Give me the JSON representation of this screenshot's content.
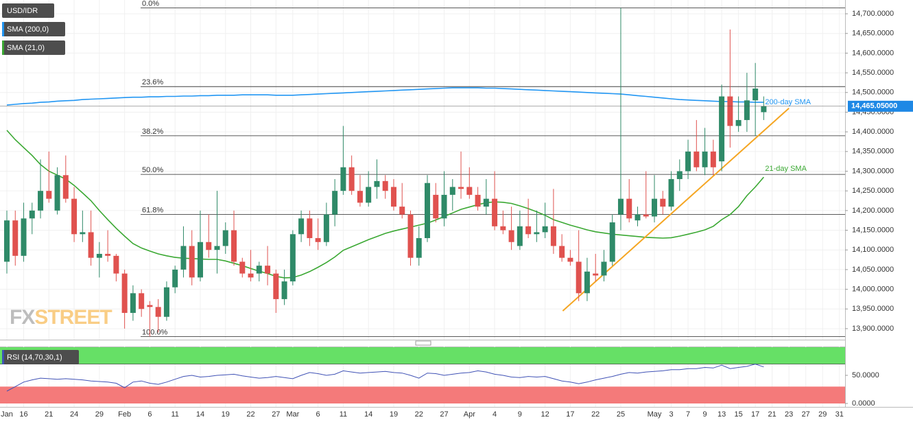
{
  "chart_data": {
    "type": "candlestick",
    "symbol": "USD/IDR",
    "categories": [
      "Jan",
      null,
      "16",
      null,
      null,
      "21",
      null,
      null,
      "24",
      null,
      null,
      "29",
      null,
      null,
      "Feb",
      null,
      null,
      "6",
      null,
      null,
      "11",
      null,
      null,
      "14",
      null,
      null,
      "19",
      null,
      null,
      "22",
      null,
      null,
      "27",
      null,
      "Mar",
      null,
      null,
      "6",
      null,
      null,
      "11",
      null,
      null,
      "14",
      null,
      null,
      "19",
      null,
      null,
      "22",
      null,
      null,
      "27",
      null,
      null,
      "Apr",
      null,
      null,
      "4",
      null,
      null,
      "9",
      null,
      null,
      "12",
      null,
      null,
      "17",
      null,
      null,
      "22",
      null,
      null,
      "25",
      null,
      null,
      null,
      "May",
      null,
      "3",
      null,
      "7",
      null,
      "9",
      null,
      "13",
      null,
      "15",
      null,
      "17",
      null,
      "21",
      null,
      "23",
      null,
      "27",
      null,
      "29",
      null,
      "31"
    ],
    "open": [
      14070,
      14175,
      14085,
      14180,
      14200,
      14250,
      14200,
      14290,
      14230,
      14140,
      14145,
      14080,
      14090,
      14085,
      14040,
      13940,
      13990,
      13960,
      13955,
      13930,
      14005,
      14050,
      14110,
      14030,
      14120,
      14100,
      14110,
      14150,
      14070,
      14040,
      14040,
      14060,
      14040,
      13975,
      14020,
      14140,
      14180,
      14130,
      14120,
      14190,
      14250,
      14310,
      14250,
      14220,
      14260,
      14275,
      14260,
      14210,
      14190,
      14080,
      14130,
      14240,
      14180,
      14240,
      14260,
      14260,
      14240,
      14210,
      14230,
      14160,
      14150,
      14110,
      14160,
      14140,
      14145,
      14160,
      14110,
      14080,
      14070,
      13990,
      14040,
      14035,
      14070,
      14190,
      14230,
      14175,
      14190,
      14185,
      14230,
      14210,
      14280,
      14300,
      14350,
      14310,
      14350,
      14325,
      14490,
      14415,
      14430,
      14480,
      14450,
      null,
      null,
      null,
      null,
      null,
      null,
      null,
      null,
      null
    ],
    "high": [
      14200,
      14200,
      14220,
      14220,
      14330,
      14350,
      14310,
      14340,
      14260,
      14200,
      14200,
      14120,
      14150,
      14090,
      14050,
      14010,
      14000,
      13970,
      13975,
      14020,
      14060,
      14160,
      14150,
      14200,
      14190,
      14250,
      14170,
      14200,
      14080,
      14100,
      14070,
      14110,
      14050,
      14050,
      14150,
      14200,
      14200,
      14180,
      14220,
      14280,
      14415,
      14340,
      14290,
      14300,
      14330,
      14290,
      14280,
      14270,
      14200,
      14160,
      14290,
      14270,
      14300,
      14280,
      14350,
      14310,
      14260,
      14280,
      14300,
      14200,
      14210,
      14200,
      14230,
      14200,
      14220,
      14255,
      14140,
      14100,
      14150,
      14080,
      14090,
      14100,
      14190,
      14715,
      14280,
      14210,
      14300,
      14290,
      14250,
      14300,
      14330,
      14380,
      14430,
      14410,
      14380,
      14520,
      14660,
      14490,
      14550,
      14575,
      14490,
      null,
      null,
      null,
      null,
      null,
      null,
      null,
      null,
      null
    ],
    "low": [
      14040,
      14060,
      14070,
      14140,
      14180,
      14220,
      14190,
      14220,
      14120,
      14120,
      14060,
      14030,
      14070,
      14020,
      13900,
      13920,
      13930,
      13880,
      13890,
      13920,
      13990,
      14030,
      14010,
      14020,
      14080,
      14040,
      14090,
      14060,
      14030,
      14020,
      14020,
      14010,
      13940,
      13960,
      14010,
      14120,
      14110,
      14100,
      14110,
      14160,
      14240,
      14240,
      14210,
      14210,
      14230,
      14230,
      14200,
      14180,
      14060,
      14060,
      14120,
      14170,
      14160,
      14200,
      14230,
      14230,
      14200,
      14190,
      14150,
      14140,
      14100,
      14100,
      14130,
      14120,
      14130,
      14090,
      14070,
      14060,
      13970,
      13970,
      14020,
      14020,
      14060,
      14150,
      14170,
      14160,
      14180,
      14170,
      14190,
      14200,
      14250,
      14280,
      14300,
      14290,
      14290,
      14300,
      14360,
      14400,
      14400,
      14390,
      14430,
      null,
      null,
      null,
      null,
      null,
      null,
      null,
      null,
      null
    ],
    "close": [
      14175,
      14085,
      14180,
      14200,
      14250,
      14230,
      14290,
      14230,
      14140,
      14145,
      14080,
      14090,
      14085,
      14040,
      13940,
      13990,
      13950,
      13955,
      13930,
      14005,
      14050,
      14110,
      14030,
      14120,
      14100,
      14110,
      14150,
      14070,
      14040,
      14030,
      14060,
      14040,
      13975,
      14020,
      14140,
      14180,
      14130,
      14120,
      14190,
      14250,
      14310,
      14250,
      14220,
      14260,
      14275,
      14250,
      14210,
      14190,
      14080,
      14130,
      14270,
      14180,
      14240,
      14260,
      14255,
      14240,
      14210,
      14230,
      14160,
      14150,
      14120,
      14160,
      14140,
      14145,
      14160,
      14110,
      14080,
      14070,
      13990,
      14045,
      14035,
      14070,
      14170,
      14230,
      14180,
      14190,
      14185,
      14230,
      14210,
      14280,
      14300,
      14350,
      14310,
      14350,
      14310,
      14490,
      14415,
      14430,
      14480,
      14510,
      14465,
      null,
      null,
      null,
      null,
      null,
      null,
      null,
      null,
      null
    ],
    "up_color": "#2f8a68",
    "down_color": "#e0524f",
    "series": [
      {
        "name": "SMA (200,0)",
        "color": "#2196f3",
        "values": [
          14468,
          14470,
          14472,
          14473,
          14475,
          14476,
          14478,
          14479,
          14480,
          14482,
          14483,
          14484,
          14485,
          14486,
          14487,
          14488,
          14488,
          14489,
          14489,
          14490,
          14490,
          14491,
          14491,
          14492,
          14492,
          14493,
          14493,
          14493,
          14494,
          14494,
          14494,
          14494,
          14493,
          14493,
          14493,
          14494,
          14495,
          14496,
          14497,
          14498,
          14499,
          14500,
          14501,
          14502,
          14503,
          14504,
          14505,
          14506,
          14507,
          14508,
          14509,
          14510,
          14511,
          14512,
          14512,
          14512,
          14512,
          14511,
          14511,
          14510,
          14509,
          14508,
          14507,
          14506,
          14505,
          14504,
          14503,
          14502,
          14501,
          14500,
          14499,
          14498,
          14497,
          14496,
          14494,
          14492,
          14490,
          14488,
          14486,
          14484,
          14482,
          14481,
          14480,
          14479,
          14478,
          14477,
          14477,
          14476,
          14476,
          14475,
          14475,
          null,
          null,
          null,
          null,
          null,
          null,
          null,
          null,
          null
        ]
      },
      {
        "name": "SMA (21,0)",
        "color": "#3aa832",
        "values": [
          14404,
          14380,
          14360,
          14340,
          14317,
          14300,
          14290,
          14280,
          14264,
          14245,
          14225,
          14200,
          14177,
          14155,
          14135,
          14116,
          14105,
          14097,
          14090,
          14085,
          14081,
          14079,
          14078,
          14077,
          14076,
          14076,
          14072,
          14066,
          14060,
          14053,
          14046,
          14040,
          14033,
          14029,
          14030,
          14036,
          14045,
          14056,
          14068,
          14082,
          14099,
          14108,
          14117,
          14126,
          14134,
          14142,
          14148,
          14153,
          14158,
          14163,
          14168,
          14176,
          14185,
          14194,
          14203,
          14209,
          14215,
          14220,
          14222,
          14221,
          14218,
          14212,
          14205,
          14197,
          14188,
          14177,
          14170,
          14163,
          14157,
          14151,
          14146,
          14143,
          14140,
          14138,
          14136,
          14134,
          14132,
          14131,
          14130,
          14131,
          14135,
          14140,
          14145,
          14151,
          14160,
          14177,
          14190,
          14210,
          14238,
          14260,
          14285,
          null,
          null,
          null,
          null,
          null,
          null,
          null,
          null,
          null
        ]
      }
    ],
    "ylim": [
      13872,
      14735
    ],
    "yticks": [
      {
        "value": 13900,
        "label": "13,900.0000"
      },
      {
        "value": 13950,
        "label": "13,950.0000"
      },
      {
        "value": 14000,
        "label": "14,000.0000"
      },
      {
        "value": 14050,
        "label": "14,050.0000"
      },
      {
        "value": 14100,
        "label": "14,100.0000"
      },
      {
        "value": 14150,
        "label": "14,150.0000"
      },
      {
        "value": 14200,
        "label": "14,200.0000"
      },
      {
        "value": 14250,
        "label": "14,250.0000"
      },
      {
        "value": 14300,
        "label": "14,300.0000"
      },
      {
        "value": 14350,
        "label": "14,350.0000"
      },
      {
        "value": 14400,
        "label": "14,400.0000"
      },
      {
        "value": 14450,
        "label": "14,450.0000"
      },
      {
        "value": 14500,
        "label": "14,500.0000"
      },
      {
        "value": 14550,
        "label": "14,550.0000"
      },
      {
        "value": 14600,
        "label": "14,600.0000"
      },
      {
        "value": 14650,
        "label": "14,650.0000"
      },
      {
        "value": 14700,
        "label": "14,700.0000"
      }
    ],
    "last_price": {
      "value": 14465.05,
      "label": "14,465.05000"
    },
    "fib_levels": [
      {
        "label": "0.0%",
        "value": 14715
      },
      {
        "label": "23.6%",
        "value": 14515
      },
      {
        "label": "38.2%",
        "value": 14390
      },
      {
        "label": "50.0%",
        "value": 14292
      },
      {
        "label": "61.8%",
        "value": 14190
      },
      {
        "label": "100.0%",
        "value": 13880
      }
    ],
    "trendline": {
      "color": "#f5a623",
      "values": [
        13945,
        14460
      ]
    },
    "annotations": [
      {
        "text": "200-day SMA",
        "color": "#2196f3"
      },
      {
        "text": "21-day SMA",
        "color": "#3aa832"
      }
    ],
    "watermark": [
      "FX",
      "STREET"
    ],
    "grid": true,
    "rsi": {
      "name": "RSI (14,70,30,1)",
      "color": "#3f51b5",
      "ylim": [
        0,
        100
      ],
      "yticks": [
        {
          "value": 0,
          "label": "0.0000"
        },
        {
          "value": 50,
          "label": "50.0000"
        }
      ],
      "overbought": 70,
      "oversold": 30,
      "overbought_color": "#66e066",
      "oversold_color": "#f47a7a",
      "values": [
        22,
        30,
        38,
        42,
        45,
        44,
        43,
        44,
        43,
        42,
        40,
        39,
        38,
        36,
        28,
        38,
        40,
        36,
        34,
        38,
        43,
        48,
        50,
        47,
        48,
        50,
        51,
        52,
        49,
        47,
        45,
        46,
        48,
        46,
        44,
        50,
        55,
        53,
        50,
        52,
        58,
        56,
        54,
        55,
        56,
        57,
        55,
        54,
        50,
        45,
        54,
        53,
        50,
        52,
        54,
        55,
        58,
        56,
        52,
        50,
        47,
        46,
        48,
        47,
        48,
        44,
        40,
        38,
        35,
        38,
        42,
        45,
        48,
        52,
        55,
        54,
        56,
        57,
        58,
        60,
        60,
        62,
        62,
        64,
        63,
        68,
        62,
        64,
        66,
        70,
        65,
        null,
        null,
        null,
        null,
        null,
        null,
        null,
        null,
        null
      ]
    }
  }
}
